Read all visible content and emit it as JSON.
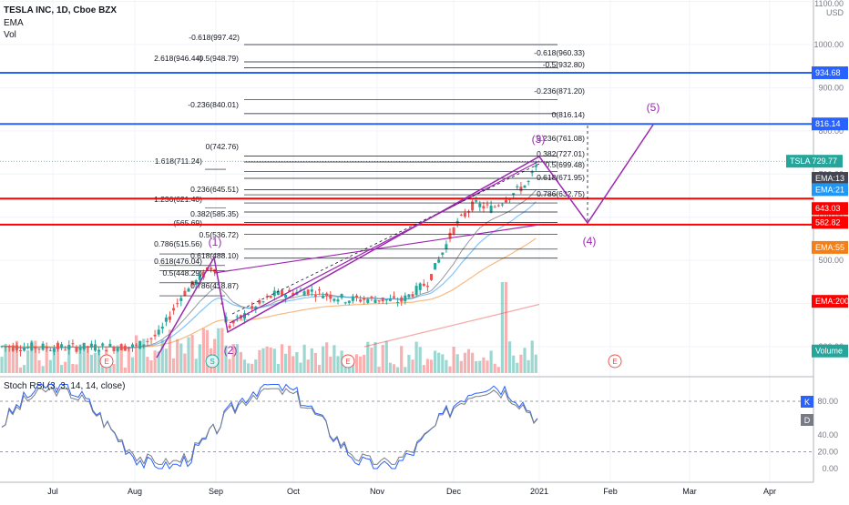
{
  "header": {
    "title": "TESLA INC, 1D, Cboe BZX",
    "ema_label": "EMA",
    "vol_label": "Vol"
  },
  "price_axis": {
    "currency_top": "1100.00",
    "currency_unit": "USD",
    "ticks": [
      "1000.00",
      "900.00",
      "800.00",
      "700.00",
      "600.00",
      "500.00",
      "400.00",
      "300.00"
    ]
  },
  "price_tags": [
    {
      "label": "934.68",
      "color": "#2962ff"
    },
    {
      "label": "816.14",
      "color": "#2962ff"
    },
    {
      "label": "TSLA",
      "value": "729.77",
      "color": "#26a69a"
    },
    {
      "label": "EMA:13",
      "color": "#434651"
    },
    {
      "label": "EMA:21",
      "color": "#2196f3"
    },
    {
      "label": "643.03",
      "color": "#ff0000"
    },
    {
      "label": "582.82",
      "color": "#ff0000"
    },
    {
      "label": "EMA:55",
      "color": "#f57f17"
    },
    {
      "label": "EMA:200",
      "color": "#ff0000"
    },
    {
      "label": "Volume",
      "color": "#26a69a"
    }
  ],
  "time_axis": [
    "Jul",
    "Aug",
    "Sep",
    "Oct",
    "Nov",
    "Dec",
    "2021",
    "Feb",
    "Mar",
    "Apr"
  ],
  "fib_labels": [
    "-0.618(997.42)",
    "-0.618(960.33)",
    "2.618(946.44)",
    "-0.5(948.79)",
    "-0.5(932.80)",
    "-0.236(871.20)",
    "-0.236(840.01)",
    "0(816.14)",
    "0(742.76)",
    "0.236(761.08)",
    "0.382(727.01)",
    "1.618(711.24)",
    "0.5(699.48)",
    "0.618(671.95)",
    "0.236(645.51)",
    "0.786(632.75)",
    "1.236(621.40)",
    "0.382(585.35)",
    "(565.69)",
    "0.5(536.72)",
    "0.786(515.56)",
    "0.618(488.10)",
    "0.618(476.04)",
    "0.5(448.29)",
    "0.786(418.87)"
  ],
  "waves": [
    "(1)",
    "(2)",
    "(3)",
    "(4)",
    "(5)"
  ],
  "earnings_marker": "E",
  "split_marker": "S",
  "rsi": {
    "title": "Stoch RSI (3, 3, 14, 14, close)",
    "ticks": [
      "80.00",
      "40.00",
      "20.00",
      "0.00"
    ],
    "k_label": "K",
    "d_label": "D"
  },
  "chart_data": {
    "type": "candlestick",
    "title": "TESLA INC, 1D, Cboe BZX",
    "ylabel": "USD",
    "ylim": [
      250,
      1100
    ],
    "horizontal_levels": [
      {
        "value": 934.68,
        "color": "#2962ff"
      },
      {
        "value": 816.14,
        "color": "#2962ff"
      },
      {
        "value": 643.03,
        "color": "#ff0000"
      },
      {
        "value": 582.82,
        "color": "#ff0000"
      }
    ],
    "last_price": 729.77,
    "wave_projection": [
      {
        "label": "(3)",
        "price": 742
      },
      {
        "label": "(4)",
        "price": 583
      },
      {
        "label": "(5)",
        "price": 816
      }
    ]
  }
}
